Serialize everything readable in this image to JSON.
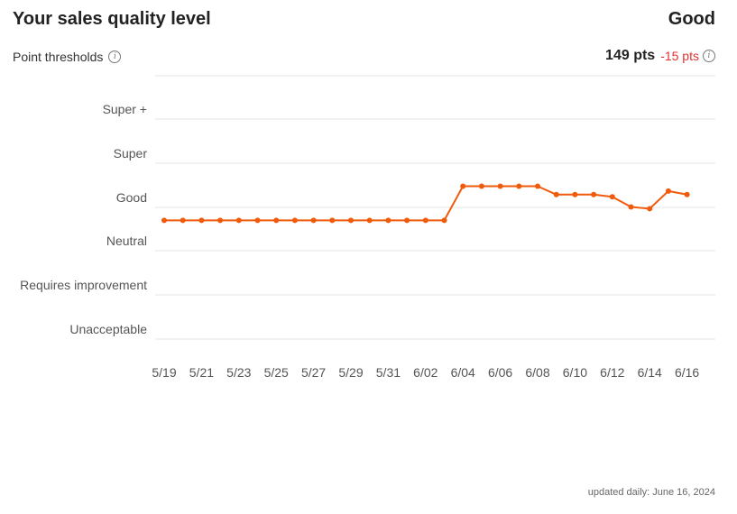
{
  "header": {
    "title": "Your sales quality level",
    "level": "Good"
  },
  "thresholds": {
    "label": "Point thresholds"
  },
  "points": {
    "value": "149 pts",
    "delta": "-15 pts"
  },
  "footer": {
    "updated": "updated daily: June 16, 2024"
  },
  "colors": {
    "line": "#f05a0a",
    "grid": "#e4e4e4",
    "delta": "#e03131"
  },
  "chart_data": {
    "type": "line",
    "ylabel_categories": [
      "Unacceptable",
      "Requires improvement",
      "Neutral",
      "Good",
      "Super",
      "Super +"
    ],
    "x_ticks": [
      "5/19",
      "5/21",
      "5/23",
      "5/25",
      "5/27",
      "5/29",
      "5/31",
      "6/02",
      "6/04",
      "6/06",
      "6/08",
      "6/10",
      "6/12",
      "6/14",
      "6/16"
    ],
    "x": [
      "5/19",
      "5/20",
      "5/21",
      "5/22",
      "5/23",
      "5/24",
      "5/25",
      "5/26",
      "5/27",
      "5/28",
      "5/29",
      "5/30",
      "5/31",
      "6/01",
      "6/02",
      "6/03",
      "6/04",
      "6/05",
      "6/06",
      "6/07",
      "6/08",
      "6/09",
      "6/10",
      "6/11",
      "6/12",
      "6/13",
      "6/14",
      "6/15",
      "6/16"
    ],
    "series": [
      {
        "values": [
          2.7,
          2.7,
          2.7,
          2.7,
          2.7,
          2.7,
          2.7,
          2.7,
          2.7,
          2.7,
          2.7,
          2.7,
          2.7,
          2.7,
          2.7,
          2.7,
          3.48,
          3.48,
          3.48,
          3.48,
          3.48,
          3.29,
          3.29,
          3.29,
          3.24,
          3.01,
          2.97,
          3.37,
          3.29
        ]
      }
    ]
  }
}
